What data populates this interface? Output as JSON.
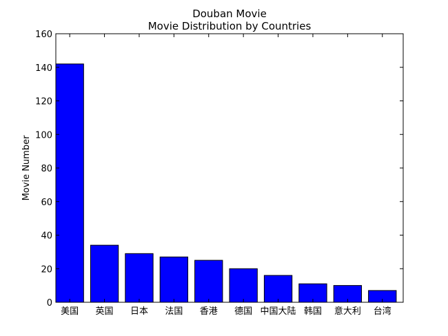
{
  "chart_data": {
    "type": "bar",
    "title": "Douban Movie",
    "subtitle": "Movie Distribution by Countries",
    "xlabel": "",
    "ylabel": "Movie Number",
    "ylim": [
      0,
      160
    ],
    "yticks": [
      0,
      20,
      40,
      60,
      80,
      100,
      120,
      140,
      160
    ],
    "grid": false,
    "categories": [
      "美国",
      "英国",
      "日本",
      "法国",
      "香港",
      "德国",
      "中国大陆",
      "韩国",
      "意大利",
      "台湾"
    ],
    "values": [
      142,
      34,
      29,
      27,
      25,
      20,
      16,
      11,
      10,
      7
    ],
    "bar_color": "#0000ff",
    "edge_color": "#000000"
  }
}
